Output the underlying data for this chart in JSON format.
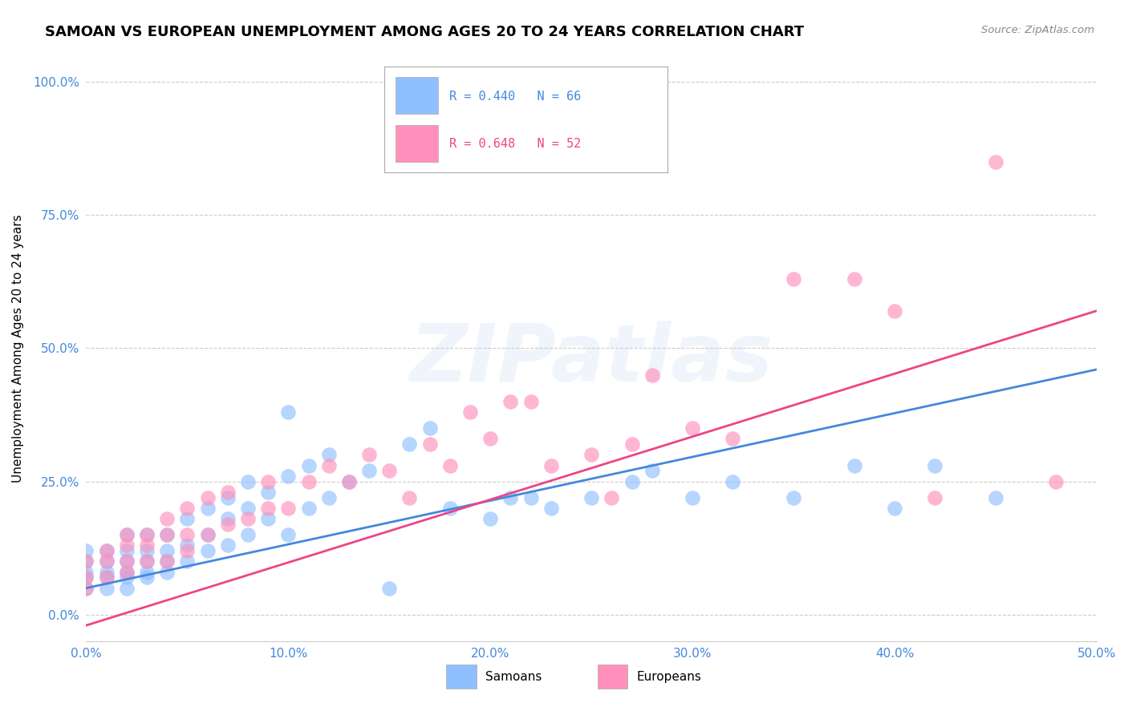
{
  "title": "SAMOAN VS EUROPEAN UNEMPLOYMENT AMONG AGES 20 TO 24 YEARS CORRELATION CHART",
  "source": "Source: ZipAtlas.com",
  "ylabel_label": "Unemployment Among Ages 20 to 24 years",
  "xlim": [
    0.0,
    0.5
  ],
  "ylim": [
    -0.05,
    1.05
  ],
  "xticks": [
    0.0,
    0.1,
    0.2,
    0.3,
    0.4,
    0.5
  ],
  "xtick_labels": [
    "0.0%",
    "10.0%",
    "20.0%",
    "30.0%",
    "40.0%",
    "50.0%"
  ],
  "yticks": [
    0.0,
    0.25,
    0.5,
    0.75,
    1.0
  ],
  "ytick_labels": [
    "0.0%",
    "25.0%",
    "50.0%",
    "75.0%",
    "100.0%"
  ],
  "title_fontsize": 13,
  "axis_label_fontsize": 11,
  "tick_fontsize": 11,
  "background_color": "#ffffff",
  "samoans_color": "#90bfff",
  "europeans_color": "#ff90bb",
  "samoan_R": 0.44,
  "samoan_N": 66,
  "european_R": 0.648,
  "european_N": 52,
  "samoan_line_color": "#4488dd",
  "european_line_color": "#ee4488",
  "samoan_line_x": [
    0.0,
    0.5
  ],
  "samoan_line_y": [
    0.05,
    0.46
  ],
  "european_line_x": [
    0.0,
    0.5
  ],
  "european_line_y": [
    -0.02,
    0.57
  ],
  "watermark": "ZIPatlas",
  "samoans_scatter_x": [
    0.0,
    0.0,
    0.0,
    0.0,
    0.0,
    0.01,
    0.01,
    0.01,
    0.01,
    0.01,
    0.02,
    0.02,
    0.02,
    0.02,
    0.02,
    0.02,
    0.03,
    0.03,
    0.03,
    0.03,
    0.03,
    0.04,
    0.04,
    0.04,
    0.04,
    0.05,
    0.05,
    0.05,
    0.06,
    0.06,
    0.06,
    0.07,
    0.07,
    0.07,
    0.08,
    0.08,
    0.08,
    0.09,
    0.09,
    0.1,
    0.1,
    0.11,
    0.11,
    0.12,
    0.12,
    0.13,
    0.14,
    0.15,
    0.16,
    0.17,
    0.18,
    0.2,
    0.21,
    0.22,
    0.23,
    0.25,
    0.27,
    0.28,
    0.3,
    0.32,
    0.35,
    0.38,
    0.4,
    0.42,
    0.45,
    0.1
  ],
  "samoans_scatter_y": [
    0.05,
    0.07,
    0.08,
    0.1,
    0.12,
    0.05,
    0.07,
    0.08,
    0.1,
    0.12,
    0.05,
    0.07,
    0.08,
    0.1,
    0.12,
    0.15,
    0.07,
    0.08,
    0.1,
    0.12,
    0.15,
    0.08,
    0.1,
    0.12,
    0.15,
    0.1,
    0.13,
    0.18,
    0.12,
    0.15,
    0.2,
    0.13,
    0.18,
    0.22,
    0.15,
    0.2,
    0.25,
    0.18,
    0.23,
    0.15,
    0.26,
    0.2,
    0.28,
    0.22,
    0.3,
    0.25,
    0.27,
    0.05,
    0.32,
    0.35,
    0.2,
    0.18,
    0.22,
    0.22,
    0.2,
    0.22,
    0.25,
    0.27,
    0.22,
    0.25,
    0.22,
    0.28,
    0.2,
    0.28,
    0.22,
    0.38
  ],
  "europeans_scatter_x": [
    0.0,
    0.0,
    0.0,
    0.01,
    0.01,
    0.01,
    0.02,
    0.02,
    0.02,
    0.02,
    0.03,
    0.03,
    0.03,
    0.04,
    0.04,
    0.04,
    0.05,
    0.05,
    0.05,
    0.06,
    0.06,
    0.07,
    0.07,
    0.08,
    0.09,
    0.09,
    0.1,
    0.11,
    0.12,
    0.13,
    0.14,
    0.15,
    0.16,
    0.17,
    0.18,
    0.19,
    0.2,
    0.21,
    0.22,
    0.23,
    0.25,
    0.26,
    0.27,
    0.28,
    0.3,
    0.32,
    0.35,
    0.38,
    0.4,
    0.42,
    0.45,
    0.48
  ],
  "europeans_scatter_y": [
    0.05,
    0.07,
    0.1,
    0.07,
    0.1,
    0.12,
    0.08,
    0.1,
    0.13,
    0.15,
    0.1,
    0.13,
    0.15,
    0.1,
    0.15,
    0.18,
    0.12,
    0.15,
    0.2,
    0.15,
    0.22,
    0.17,
    0.23,
    0.18,
    0.2,
    0.25,
    0.2,
    0.25,
    0.28,
    0.25,
    0.3,
    0.27,
    0.22,
    0.32,
    0.28,
    0.38,
    0.33,
    0.4,
    0.4,
    0.28,
    0.3,
    0.22,
    0.32,
    0.45,
    0.35,
    0.33,
    0.63,
    0.63,
    0.57,
    0.22,
    0.85,
    0.25
  ]
}
